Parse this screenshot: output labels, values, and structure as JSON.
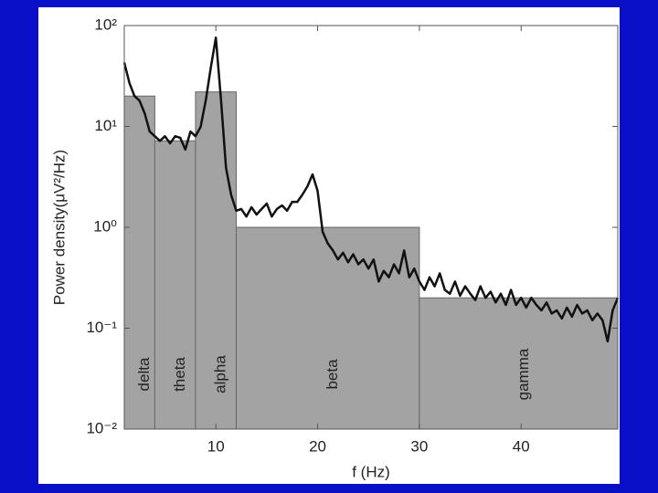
{
  "chart_data": {
    "type": "bar",
    "xlabel": "f (Hz)",
    "ylabel": "Power density(μV²/Hz)",
    "xlim": [
      1,
      49.5
    ],
    "ylim": [
      0.01,
      100
    ],
    "ylog": true,
    "xticks": [
      10,
      20,
      30,
      40
    ],
    "yticks": [
      {
        "value": 0.01,
        "label": "10⁻²"
      },
      {
        "value": 0.1,
        "label": "10⁻¹"
      },
      {
        "value": 1,
        "label": "10⁰"
      },
      {
        "value": 10,
        "label": "10¹"
      },
      {
        "value": 100,
        "label": "10²"
      }
    ],
    "bins": [
      1,
      4,
      8,
      12,
      30,
      49.5
    ],
    "categories": [
      "delta",
      "theta",
      "alpha",
      "beta",
      "gamma"
    ],
    "values": [
      20,
      7.2,
      22,
      1,
      0.2
    ],
    "color": "#a3a3a3",
    "series": [
      {
        "color": "#111111",
        "x": [
          1,
          1.5,
          2,
          2.5,
          3,
          3.5,
          4,
          4.5,
          5,
          5.5,
          6,
          6.5,
          7,
          7.5,
          8,
          8.5,
          9,
          9.5,
          10,
          10.5,
          11,
          11.5,
          12,
          12.5,
          13,
          13.5,
          14,
          14.5,
          15,
          15.5,
          16,
          16.5,
          17,
          17.5,
          18,
          18.5,
          19,
          19.5,
          20,
          20.5,
          21,
          21.5,
          22,
          22.5,
          23,
          23.5,
          24,
          24.5,
          25,
          25.5,
          26,
          26.5,
          27,
          27.5,
          28,
          28.5,
          29,
          29.5,
          30,
          30.5,
          31,
          31.5,
          32,
          32.5,
          33,
          33.5,
          34,
          34.5,
          35,
          35.5,
          36,
          36.5,
          37,
          37.5,
          38,
          38.5,
          39,
          39.5,
          40,
          40.5,
          41,
          41.5,
          42,
          42.5,
          43,
          43.5,
          44,
          44.5,
          45,
          45.5,
          46,
          46.5,
          47,
          47.5,
          48,
          48.5,
          49,
          49.5
        ],
        "values": [
          43,
          27,
          20,
          18,
          13.5,
          8.9,
          8.0,
          7.2,
          8.0,
          6.8,
          8.0,
          7.7,
          5.9,
          8.9,
          8.0,
          9.9,
          18,
          38,
          76,
          18.5,
          3.9,
          2.1,
          1.46,
          1.52,
          1.28,
          1.58,
          1.34,
          1.52,
          1.72,
          1.28,
          1.52,
          1.65,
          1.46,
          1.79,
          1.79,
          2.1,
          2.55,
          3.35,
          2.3,
          0.9,
          0.69,
          0.59,
          0.48,
          0.56,
          0.45,
          0.54,
          0.43,
          0.48,
          0.39,
          0.48,
          0.29,
          0.37,
          0.32,
          0.43,
          0.35,
          0.59,
          0.32,
          0.39,
          0.29,
          0.24,
          0.32,
          0.26,
          0.35,
          0.24,
          0.22,
          0.29,
          0.21,
          0.26,
          0.22,
          0.19,
          0.26,
          0.2,
          0.23,
          0.18,
          0.22,
          0.17,
          0.24,
          0.17,
          0.2,
          0.16,
          0.2,
          0.17,
          0.15,
          0.18,
          0.14,
          0.15,
          0.125,
          0.16,
          0.13,
          0.17,
          0.14,
          0.15,
          0.12,
          0.14,
          0.12,
          0.074,
          0.15,
          0.2
        ]
      }
    ]
  }
}
